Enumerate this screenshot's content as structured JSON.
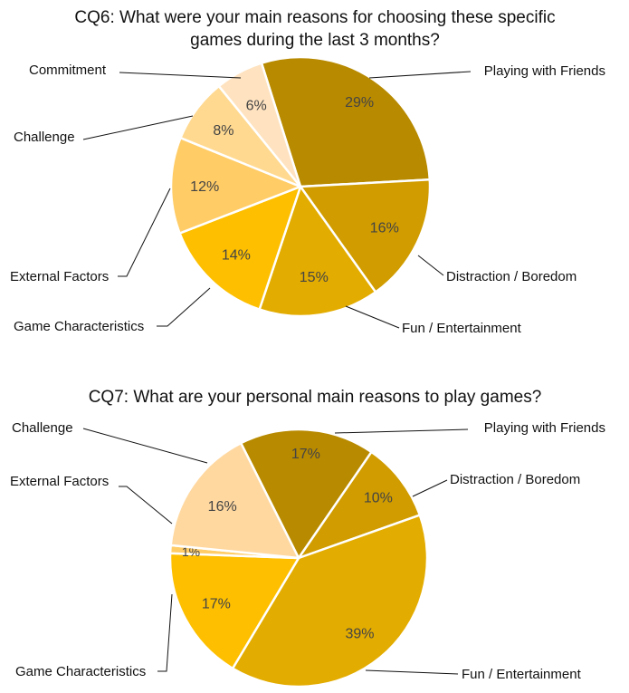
{
  "chart_data": [
    {
      "type": "pie",
      "title": "CQ6: What were your main reasons for choosing these specific games during the last 3 months?",
      "title_lines": [
        "CQ6: What were your main reasons for choosing these specific",
        "games during the last 3 months?"
      ],
      "slices": [
        {
          "name": "Playing with Friends",
          "value": 29,
          "label": "29%",
          "color": "#b88a00"
        },
        {
          "name": "Distraction / Boredom",
          "value": 16,
          "label": "16%",
          "color": "#d09c00"
        },
        {
          "name": "Fun / Entertainment",
          "value": 15,
          "label": "15%",
          "color": "#e3ac00"
        },
        {
          "name": "Game Characteristics",
          "value": 14,
          "label": "14%",
          "color": "#fdbf00"
        },
        {
          "name": "External Factors",
          "value": 12,
          "label": "12%",
          "color": "#ffcc66"
        },
        {
          "name": "Challenge",
          "value": 8,
          "label": "8%",
          "color": "#ffd990"
        },
        {
          "name": "Commitment",
          "value": 6,
          "label": "6%",
          "color": "#ffe3c0"
        }
      ]
    },
    {
      "type": "pie",
      "title": "CQ7: What are your personal main reasons to play games?",
      "title_lines": [
        "CQ7:  What are your personal main reasons to play games?"
      ],
      "slices": [
        {
          "name": "Playing with Friends",
          "value": 17,
          "label": "17%",
          "color": "#b88a00"
        },
        {
          "name": "Distraction / Boredom",
          "value": 10,
          "label": "10%",
          "color": "#d09c00"
        },
        {
          "name": "Fun / Entertainment",
          "value": 39,
          "label": "39%",
          "color": "#e3ac00"
        },
        {
          "name": "Game Characteristics",
          "value": 17,
          "label": "17%",
          "color": "#fdbf00"
        },
        {
          "name": "External Factors",
          "value": 1,
          "label": "1%",
          "color": "#ffcc66"
        },
        {
          "name": "Challenge",
          "value": 16,
          "label": "16%",
          "color": "#ffd8a0"
        }
      ]
    }
  ]
}
